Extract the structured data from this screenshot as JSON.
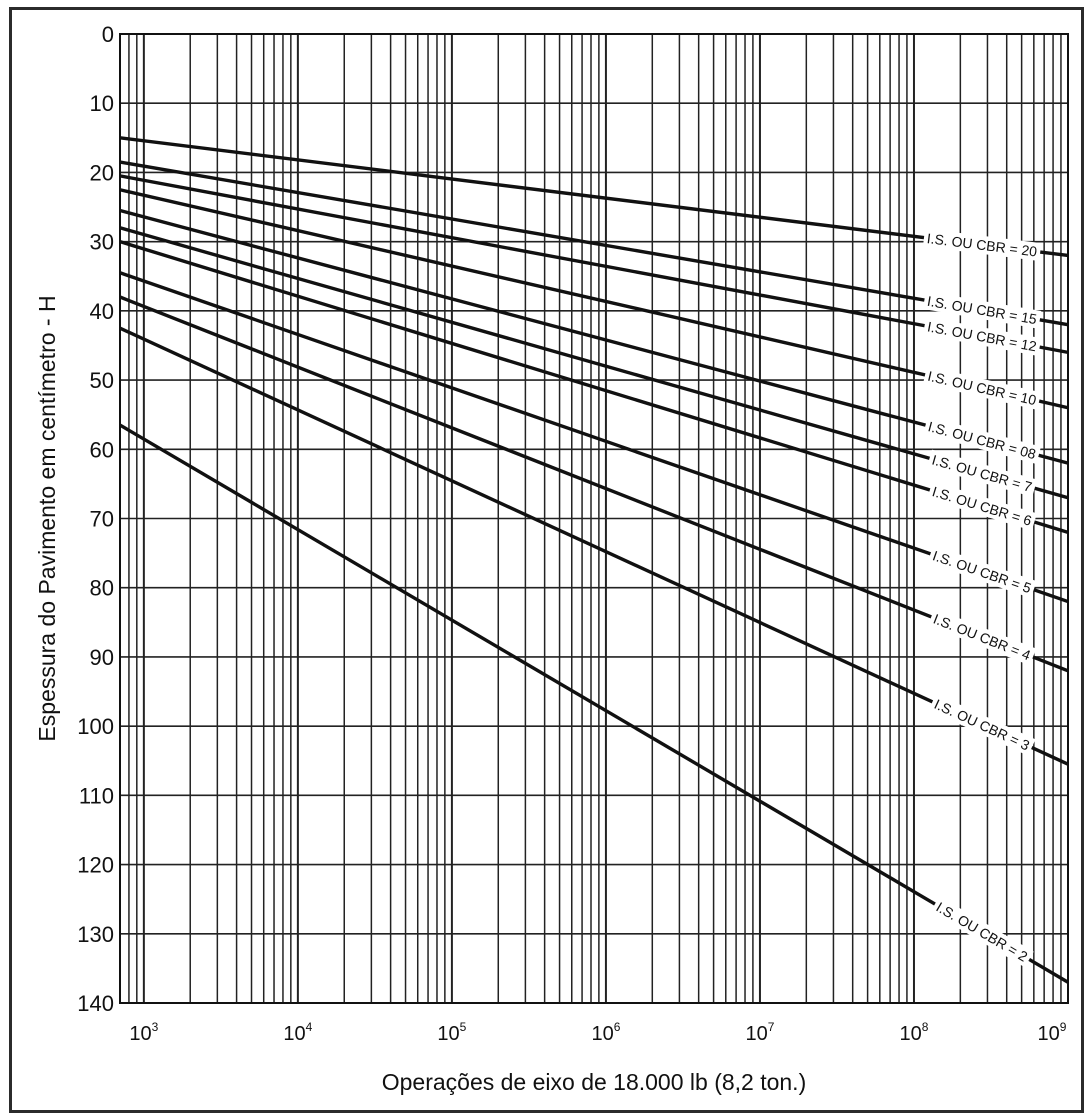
{
  "chart_data": {
    "type": "line",
    "title": "",
    "xlabel": "Operações de eixo de 18.000 lb (8,2 ton.)",
    "ylabel": "Espessura do Pavimento em centímetro - H",
    "x_scale": "log",
    "xlim": [
      700,
      1000000000
    ],
    "ylim": [
      0,
      140
    ],
    "y_inverted": true,
    "grid": true,
    "y_ticks": [
      0,
      10,
      20,
      30,
      40,
      50,
      60,
      70,
      80,
      90,
      100,
      110,
      120,
      130,
      140
    ],
    "x_ticks": [
      {
        "value": 1000,
        "base": "10",
        "exp": "3"
      },
      {
        "value": 10000,
        "base": "10",
        "exp": "4"
      },
      {
        "value": 100000,
        "base": "10",
        "exp": "5"
      },
      {
        "value": 1000000,
        "base": "10",
        "exp": "6"
      },
      {
        "value": 10000000,
        "base": "10",
        "exp": "7"
      },
      {
        "value": 100000000,
        "base": "10",
        "exp": "8"
      },
      {
        "value": 1000000000,
        "base": "10",
        "exp": "9"
      }
    ],
    "series": [
      {
        "name": "I.S. OU CBR = 20",
        "x": [
          700,
          1000000000
        ],
        "y": [
          15,
          32
        ]
      },
      {
        "name": "I.S. OU CBR = 15",
        "x": [
          700,
          1000000000
        ],
        "y": [
          18.5,
          42
        ]
      },
      {
        "name": "I.S. OU CBR = 12",
        "x": [
          700,
          1000000000
        ],
        "y": [
          20.5,
          46
        ]
      },
      {
        "name": "I.S. OU CBR = 10",
        "x": [
          700,
          1000000000
        ],
        "y": [
          22.5,
          54
        ]
      },
      {
        "name": "I.S. OU CBR = 08",
        "x": [
          700,
          1000000000
        ],
        "y": [
          25.5,
          62
        ]
      },
      {
        "name": "I.S. OU CBR = 7",
        "x": [
          700,
          1000000000
        ],
        "y": [
          28,
          67
        ]
      },
      {
        "name": "I.S. OU CBR = 6",
        "x": [
          700,
          1000000000
        ],
        "y": [
          30,
          72
        ]
      },
      {
        "name": "I.S. OU CBR = 5",
        "x": [
          700,
          1000000000
        ],
        "y": [
          34.5,
          82
        ]
      },
      {
        "name": "I.S. OU CBR = 4",
        "x": [
          700,
          1000000000
        ],
        "y": [
          38,
          92
        ]
      },
      {
        "name": "I.S. OU CBR = 3",
        "x": [
          700,
          1000000000
        ],
        "y": [
          42.5,
          105.5
        ]
      },
      {
        "name": "I.S. OU CBR = 2",
        "x": [
          700,
          1000000000
        ],
        "y": [
          56.5,
          137
        ]
      }
    ]
  }
}
